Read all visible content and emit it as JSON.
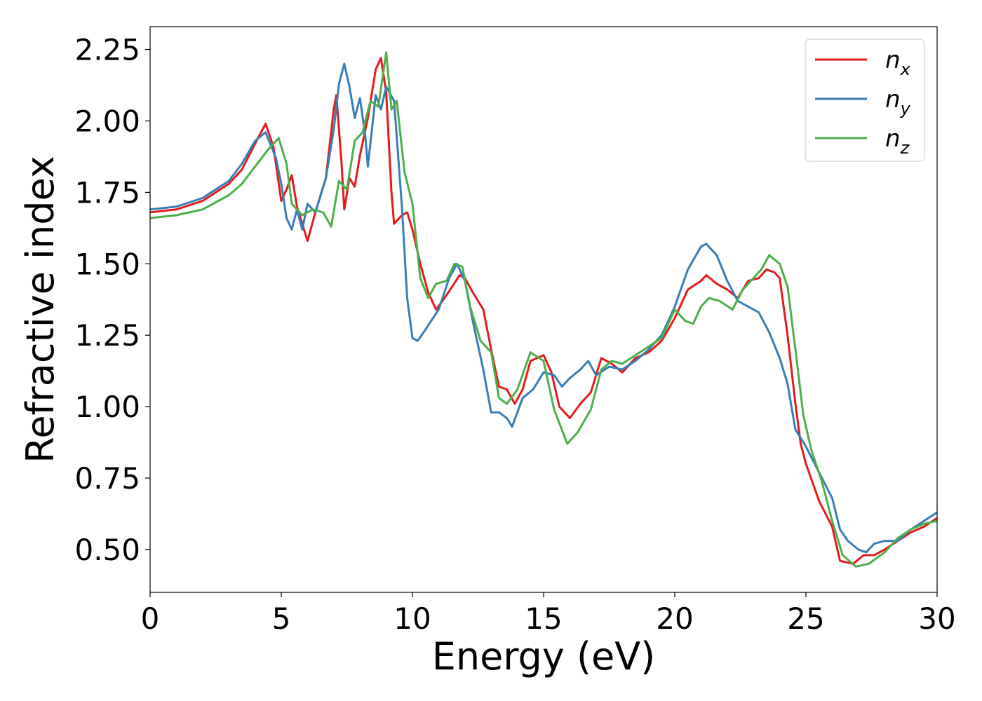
{
  "chart_data": {
    "type": "line",
    "title": "",
    "xlabel": "Energy (eV)",
    "ylabel": "Refractive index",
    "xlim": [
      0,
      30
    ],
    "ylim": [
      0.35,
      2.33
    ],
    "xticks": [
      0,
      5,
      10,
      15,
      20,
      25,
      30
    ],
    "xtick_labels": [
      "0",
      "5",
      "10",
      "15",
      "20",
      "25",
      "30"
    ],
    "yticks": [
      0.5,
      0.75,
      1.0,
      1.25,
      1.5,
      1.75,
      2.0,
      2.25
    ],
    "ytick_labels": [
      "0.50",
      "0.75",
      "1.00",
      "1.25",
      "1.50",
      "1.75",
      "2.00",
      "2.25"
    ],
    "grid": false,
    "legend_position": "top-right",
    "series": [
      {
        "name": "n_x",
        "label_main": "n",
        "label_sub": "x",
        "color": "#e41a1c",
        "points": [
          [
            0,
            1.68
          ],
          [
            1,
            1.69
          ],
          [
            2,
            1.72
          ],
          [
            3,
            1.78
          ],
          [
            3.5,
            1.83
          ],
          [
            4,
            1.92
          ],
          [
            4.4,
            1.99
          ],
          [
            4.7,
            1.91
          ],
          [
            5,
            1.72
          ],
          [
            5.2,
            1.76
          ],
          [
            5.4,
            1.81
          ],
          [
            5.6,
            1.7
          ],
          [
            5.8,
            1.64
          ],
          [
            6,
            1.58
          ],
          [
            6.3,
            1.68
          ],
          [
            6.7,
            1.8
          ],
          [
            7,
            2.04
          ],
          [
            7.1,
            2.09
          ],
          [
            7.3,
            1.85
          ],
          [
            7.4,
            1.69
          ],
          [
            7.6,
            1.8
          ],
          [
            7.8,
            1.77
          ],
          [
            8,
            1.88
          ],
          [
            8.3,
            2.01
          ],
          [
            8.6,
            2.18
          ],
          [
            8.8,
            2.22
          ],
          [
            9.0,
            2.1
          ],
          [
            9.2,
            1.75
          ],
          [
            9.3,
            1.64
          ],
          [
            9.6,
            1.67
          ],
          [
            9.8,
            1.68
          ],
          [
            10,
            1.62
          ],
          [
            10.3,
            1.5
          ],
          [
            10.6,
            1.4
          ],
          [
            10.9,
            1.34
          ],
          [
            11.3,
            1.39
          ],
          [
            11.8,
            1.46
          ],
          [
            12.0,
            1.45
          ],
          [
            12.3,
            1.4
          ],
          [
            12.7,
            1.34
          ],
          [
            13,
            1.2
          ],
          [
            13.3,
            1.07
          ],
          [
            13.6,
            1.06
          ],
          [
            13.9,
            1.01
          ],
          [
            14.2,
            1.06
          ],
          [
            14.5,
            1.16
          ],
          [
            15,
            1.18
          ],
          [
            15.3,
            1.12
          ],
          [
            15.6,
            1.0
          ],
          [
            16,
            0.96
          ],
          [
            16.4,
            1.01
          ],
          [
            16.8,
            1.05
          ],
          [
            17.2,
            1.17
          ],
          [
            17.6,
            1.15
          ],
          [
            18,
            1.12
          ],
          [
            18.5,
            1.17
          ],
          [
            19,
            1.19
          ],
          [
            19.5,
            1.23
          ],
          [
            20,
            1.31
          ],
          [
            20.5,
            1.41
          ],
          [
            21,
            1.44
          ],
          [
            21.2,
            1.46
          ],
          [
            21.6,
            1.43
          ],
          [
            22,
            1.41
          ],
          [
            22.4,
            1.38
          ],
          [
            22.8,
            1.44
          ],
          [
            23.2,
            1.45
          ],
          [
            23.5,
            1.48
          ],
          [
            23.8,
            1.47
          ],
          [
            24,
            1.45
          ],
          [
            24.3,
            1.25
          ],
          [
            24.6,
            1.01
          ],
          [
            24.8,
            0.87
          ],
          [
            25,
            0.8
          ],
          [
            25.5,
            0.67
          ],
          [
            26,
            0.58
          ],
          [
            26.3,
            0.46
          ],
          [
            26.8,
            0.45
          ],
          [
            27.2,
            0.48
          ],
          [
            27.6,
            0.48
          ],
          [
            28,
            0.5
          ],
          [
            28.5,
            0.53
          ],
          [
            29,
            0.56
          ],
          [
            29.5,
            0.58
          ],
          [
            30,
            0.61
          ]
        ]
      },
      {
        "name": "n_y",
        "label_main": "n",
        "label_sub": "y",
        "color": "#377eb8",
        "points": [
          [
            0,
            1.69
          ],
          [
            1,
            1.7
          ],
          [
            2,
            1.73
          ],
          [
            3,
            1.79
          ],
          [
            3.5,
            1.85
          ],
          [
            4,
            1.93
          ],
          [
            4.4,
            1.96
          ],
          [
            4.8,
            1.87
          ],
          [
            5,
            1.78
          ],
          [
            5.2,
            1.66
          ],
          [
            5.4,
            1.62
          ],
          [
            5.6,
            1.69
          ],
          [
            5.8,
            1.62
          ],
          [
            6,
            1.71
          ],
          [
            6.3,
            1.68
          ],
          [
            6.7,
            1.8
          ],
          [
            7,
            1.97
          ],
          [
            7.2,
            2.13
          ],
          [
            7.4,
            2.2
          ],
          [
            7.6,
            2.12
          ],
          [
            7.8,
            2.01
          ],
          [
            8,
            2.08
          ],
          [
            8.2,
            1.95
          ],
          [
            8.3,
            1.84
          ],
          [
            8.6,
            2.09
          ],
          [
            8.8,
            2.04
          ],
          [
            9,
            2.12
          ],
          [
            9.3,
            2.07
          ],
          [
            9.6,
            1.7
          ],
          [
            9.8,
            1.38
          ],
          [
            10,
            1.24
          ],
          [
            10.2,
            1.23
          ],
          [
            10.5,
            1.27
          ],
          [
            11,
            1.34
          ],
          [
            11.4,
            1.45
          ],
          [
            11.7,
            1.5
          ],
          [
            12,
            1.44
          ],
          [
            12.3,
            1.3
          ],
          [
            12.7,
            1.13
          ],
          [
            13,
            0.98
          ],
          [
            13.3,
            0.98
          ],
          [
            13.6,
            0.96
          ],
          [
            13.8,
            0.93
          ],
          [
            14.2,
            1.03
          ],
          [
            14.6,
            1.06
          ],
          [
            15,
            1.12
          ],
          [
            15.4,
            1.11
          ],
          [
            15.7,
            1.07
          ],
          [
            16,
            1.1
          ],
          [
            16.4,
            1.13
          ],
          [
            16.7,
            1.16
          ],
          [
            17,
            1.11
          ],
          [
            17.5,
            1.14
          ],
          [
            18,
            1.13
          ],
          [
            18.5,
            1.16
          ],
          [
            19,
            1.2
          ],
          [
            19.5,
            1.25
          ],
          [
            20,
            1.35
          ],
          [
            20.5,
            1.48
          ],
          [
            21,
            1.56
          ],
          [
            21.2,
            1.57
          ],
          [
            21.6,
            1.53
          ],
          [
            22,
            1.44
          ],
          [
            22.4,
            1.37
          ],
          [
            22.8,
            1.35
          ],
          [
            23.2,
            1.33
          ],
          [
            23.6,
            1.26
          ],
          [
            24,
            1.17
          ],
          [
            24.3,
            1.08
          ],
          [
            24.6,
            0.92
          ],
          [
            24.8,
            0.89
          ],
          [
            25,
            0.86
          ],
          [
            25.5,
            0.77
          ],
          [
            26,
            0.68
          ],
          [
            26.3,
            0.57
          ],
          [
            26.6,
            0.53
          ],
          [
            27,
            0.5
          ],
          [
            27.3,
            0.49
          ],
          [
            27.6,
            0.52
          ],
          [
            28,
            0.53
          ],
          [
            28.5,
            0.53
          ],
          [
            29,
            0.57
          ],
          [
            29.5,
            0.6
          ],
          [
            30,
            0.63
          ]
        ]
      },
      {
        "name": "n_z",
        "label_main": "n",
        "label_sub": "z",
        "color": "#4daf4a",
        "points": [
          [
            0,
            1.66
          ],
          [
            1,
            1.67
          ],
          [
            2,
            1.69
          ],
          [
            3,
            1.74
          ],
          [
            3.5,
            1.78
          ],
          [
            4,
            1.84
          ],
          [
            4.5,
            1.9
          ],
          [
            4.9,
            1.94
          ],
          [
            5.2,
            1.85
          ],
          [
            5.4,
            1.71
          ],
          [
            5.8,
            1.67
          ],
          [
            6.2,
            1.69
          ],
          [
            6.6,
            1.68
          ],
          [
            6.9,
            1.63
          ],
          [
            7.2,
            1.79
          ],
          [
            7.5,
            1.76
          ],
          [
            7.8,
            1.93
          ],
          [
            8.1,
            1.96
          ],
          [
            8.4,
            2.07
          ],
          [
            8.7,
            2.05
          ],
          [
            9,
            2.24
          ],
          [
            9.2,
            2.04
          ],
          [
            9.4,
            2.07
          ],
          [
            9.7,
            1.82
          ],
          [
            10,
            1.71
          ],
          [
            10.3,
            1.45
          ],
          [
            10.6,
            1.38
          ],
          [
            10.9,
            1.43
          ],
          [
            11.3,
            1.44
          ],
          [
            11.6,
            1.5
          ],
          [
            11.9,
            1.49
          ],
          [
            12.2,
            1.35
          ],
          [
            12.6,
            1.23
          ],
          [
            13,
            1.19
          ],
          [
            13.3,
            1.03
          ],
          [
            13.6,
            1.01
          ],
          [
            14.0,
            1.06
          ],
          [
            14.5,
            1.19
          ],
          [
            15,
            1.16
          ],
          [
            15.4,
            0.99
          ],
          [
            15.9,
            0.87
          ],
          [
            16.3,
            0.91
          ],
          [
            16.8,
            0.99
          ],
          [
            17.2,
            1.13
          ],
          [
            17.6,
            1.16
          ],
          [
            18,
            1.15
          ],
          [
            18.5,
            1.18
          ],
          [
            19,
            1.21
          ],
          [
            19.5,
            1.24
          ],
          [
            20,
            1.34
          ],
          [
            20.4,
            1.3
          ],
          [
            20.7,
            1.29
          ],
          [
            21,
            1.35
          ],
          [
            21.3,
            1.38
          ],
          [
            21.7,
            1.37
          ],
          [
            22.2,
            1.34
          ],
          [
            22.6,
            1.41
          ],
          [
            23,
            1.45
          ],
          [
            23.3,
            1.48
          ],
          [
            23.6,
            1.53
          ],
          [
            24,
            1.5
          ],
          [
            24.3,
            1.42
          ],
          [
            24.6,
            1.2
          ],
          [
            24.9,
            0.97
          ],
          [
            25.2,
            0.85
          ],
          [
            25.6,
            0.74
          ],
          [
            26,
            0.6
          ],
          [
            26.4,
            0.48
          ],
          [
            26.9,
            0.44
          ],
          [
            27.4,
            0.45
          ],
          [
            28,
            0.49
          ],
          [
            28.5,
            0.54
          ],
          [
            29,
            0.57
          ],
          [
            29.5,
            0.59
          ],
          [
            30,
            0.6
          ]
        ]
      }
    ]
  }
}
